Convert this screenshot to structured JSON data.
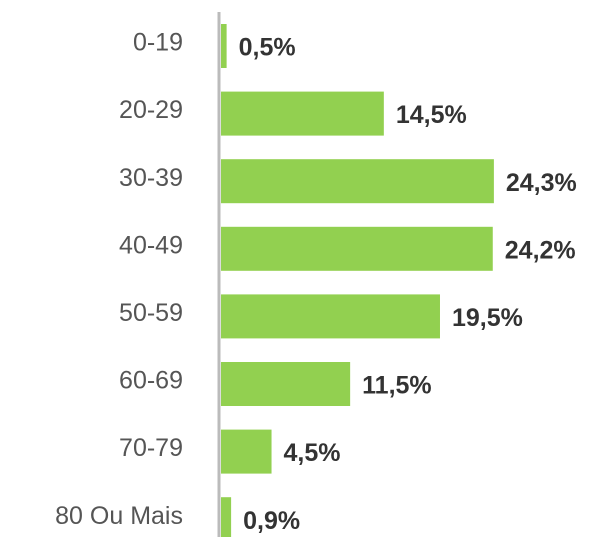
{
  "chart_data": {
    "type": "bar",
    "orientation": "horizontal",
    "categories": [
      "0-19",
      "20-29",
      "30-39",
      "40-49",
      "50-59",
      "60-69",
      "70-79",
      "80 Ou Mais"
    ],
    "values": [
      0.5,
      14.5,
      24.3,
      24.2,
      19.5,
      11.5,
      4.5,
      0.9
    ],
    "value_labels": [
      "0,5%",
      "14,5%",
      "24,3%",
      "24,2%",
      "19,5%",
      "11,5%",
      "4,5%",
      "0,9%"
    ],
    "color": "#92d050"
  }
}
